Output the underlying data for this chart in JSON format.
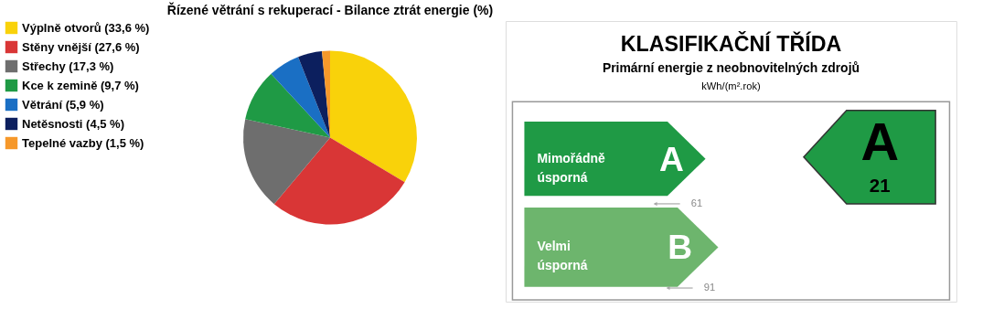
{
  "chart_data": [
    {
      "type": "pie",
      "title": "Řízené větrání s rekuperací - Bilance ztrát energie (%)",
      "categories": [
        "Výplně otvorů (33,6 %)",
        "Stěny vnější (27,6 %)",
        "Střechy (17,3 %)",
        "Kce k zemině (9,7 %)",
        "Větrání (5,9 %)",
        "Netěsnosti (4,5 %)",
        "Tepelné vazby (1,5 %)"
      ],
      "values": [
        33.6,
        27.6,
        17.3,
        9.7,
        5.9,
        4.5,
        1.5
      ],
      "colors": [
        "#f9d20a",
        "#d93636",
        "#6e6e6e",
        "#1f9a45",
        "#1a6fc4",
        "#0c1f5e",
        "#f6982a"
      ],
      "legend": "left"
    },
    {
      "type": "other",
      "title": "KLASIFIKAČNÍ TŘÍDA",
      "subtitle": "Primární energie z neobnovitelných zdrojů",
      "annotations": [
        "kWh/(m².rok)",
        "Mimořádně úsporná",
        "A",
        "61",
        "Velmi úsporná",
        "B",
        "91",
        "A",
        "21"
      ],
      "colors": [
        "#1f9a45",
        "#6db56d",
        "#1f9a45"
      ]
    }
  ]
}
